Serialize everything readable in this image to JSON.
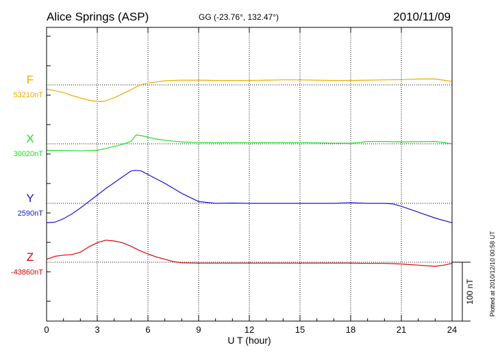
{
  "chart_data": {
    "type": "line",
    "title": "Alice Springs (ASP)",
    "coords": "GG (-23.76°, 132.47°)",
    "date": "2010/11/09",
    "xlabel": "U T (hour)",
    "xlim": [
      0,
      24
    ],
    "xticks": [
      "0",
      "3",
      "6",
      "9",
      "12",
      "15",
      "18",
      "21",
      "24"
    ],
    "grid": true,
    "scale_bar_label": "100 nT",
    "scale_bar_nT": 100,
    "plotted_note": "Plotted at 2010/12/10 00:58 UT",
    "series": [
      {
        "name": "F",
        "color": "#f0a800",
        "baseline_label": "53210nT",
        "points": [
          [
            0,
            -7
          ],
          [
            0.5,
            -10
          ],
          [
            1,
            -13
          ],
          [
            1.5,
            -18
          ],
          [
            2,
            -22
          ],
          [
            2.5,
            -26
          ],
          [
            3,
            -28.5
          ],
          [
            3.3,
            -28
          ],
          [
            3.5,
            -27
          ],
          [
            4,
            -22
          ],
          [
            4.5,
            -15
          ],
          [
            5,
            -8
          ],
          [
            5.5,
            -0.5
          ],
          [
            6,
            3
          ],
          [
            6.5,
            5
          ],
          [
            7,
            7
          ],
          [
            8,
            8
          ],
          [
            9,
            8
          ],
          [
            10,
            7.5
          ],
          [
            11,
            7.5
          ],
          [
            12,
            7.5
          ],
          [
            13,
            8
          ],
          [
            14,
            8.5
          ],
          [
            15,
            8.5
          ],
          [
            16,
            8
          ],
          [
            17,
            7.5
          ],
          [
            18,
            7.5
          ],
          [
            19,
            8
          ],
          [
            20,
            8.5
          ],
          [
            21,
            9
          ],
          [
            22,
            10
          ],
          [
            23,
            10
          ],
          [
            23.5,
            8
          ],
          [
            24,
            6
          ]
        ]
      },
      {
        "name": "X",
        "color": "#22dd22",
        "baseline_label": "30020nT",
        "points": [
          [
            0,
            -11
          ],
          [
            1,
            -11.5
          ],
          [
            2,
            -12
          ],
          [
            3,
            -11
          ],
          [
            3.5,
            -8
          ],
          [
            4,
            -4.5
          ],
          [
            4.5,
            -1
          ],
          [
            5,
            4
          ],
          [
            5.3,
            15
          ],
          [
            5.6,
            14
          ],
          [
            6,
            11
          ],
          [
            6.5,
            8
          ],
          [
            7,
            6
          ],
          [
            8,
            3
          ],
          [
            9,
            2
          ],
          [
            10,
            2
          ],
          [
            11,
            2
          ],
          [
            12,
            2
          ],
          [
            13,
            2
          ],
          [
            14,
            2
          ],
          [
            15,
            2
          ],
          [
            16,
            1.5
          ],
          [
            17,
            1
          ],
          [
            18,
            1
          ],
          [
            18.5,
            2
          ],
          [
            19,
            4
          ],
          [
            20,
            4
          ],
          [
            21,
            3
          ],
          [
            22,
            3.5
          ],
          [
            23,
            4
          ],
          [
            24,
            0
          ]
        ]
      },
      {
        "name": "Y",
        "color": "#1515d0",
        "baseline_label": "2590nT",
        "points": [
          [
            0,
            -33
          ],
          [
            0.5,
            -32
          ],
          [
            1,
            -26
          ],
          [
            1.5,
            -18
          ],
          [
            2,
            -8
          ],
          [
            2.5,
            3
          ],
          [
            3,
            14
          ],
          [
            3.5,
            25
          ],
          [
            4,
            35
          ],
          [
            4.5,
            45
          ],
          [
            5,
            55
          ],
          [
            5.3,
            56
          ],
          [
            5.6,
            55
          ],
          [
            6,
            49
          ],
          [
            7,
            34
          ],
          [
            8,
            17
          ],
          [
            9,
            3
          ],
          [
            10,
            0
          ],
          [
            11,
            0.5
          ],
          [
            12,
            0
          ],
          [
            13,
            0
          ],
          [
            14,
            0
          ],
          [
            15,
            0
          ],
          [
            16,
            0
          ],
          [
            17,
            0
          ],
          [
            18,
            1
          ],
          [
            19,
            0
          ],
          [
            20,
            0
          ],
          [
            20.5,
            -1
          ],
          [
            21,
            -5
          ],
          [
            22,
            -15
          ],
          [
            23,
            -25
          ],
          [
            24,
            -33
          ]
        ]
      },
      {
        "name": "Z",
        "color": "#dd0000",
        "baseline_label": "-43860nT",
        "points": [
          [
            0,
            5
          ],
          [
            0.5,
            10
          ],
          [
            1,
            12
          ],
          [
            1.5,
            13
          ],
          [
            2,
            17
          ],
          [
            2.5,
            26
          ],
          [
            3,
            33
          ],
          [
            3.5,
            37.5
          ],
          [
            4,
            36
          ],
          [
            4.5,
            33
          ],
          [
            5,
            27
          ],
          [
            5.5,
            20
          ],
          [
            6,
            14
          ],
          [
            6.5,
            9
          ],
          [
            7,
            5
          ],
          [
            7.5,
            1
          ],
          [
            8,
            -1
          ],
          [
            9,
            -1.5
          ],
          [
            10,
            -1.5
          ],
          [
            11,
            -1.5
          ],
          [
            12,
            -1.5
          ],
          [
            13,
            -1.5
          ],
          [
            14,
            -1.5
          ],
          [
            15,
            -1.5
          ],
          [
            16,
            -1.5
          ],
          [
            17,
            -1.5
          ],
          [
            18,
            -1.5
          ],
          [
            19,
            -2
          ],
          [
            20,
            -2
          ],
          [
            21,
            -3
          ],
          [
            22,
            -5
          ],
          [
            23,
            -7
          ],
          [
            23.5,
            -5
          ],
          [
            24,
            -2
          ]
        ]
      }
    ]
  }
}
